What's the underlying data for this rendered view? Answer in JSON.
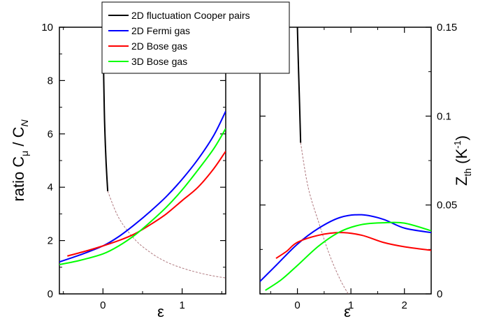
{
  "chart_data": [
    {
      "type": "line",
      "ylabel_left": "ratio  C",
      "ylabel_left_sub": "μ",
      "ylabel_left_mid": " / C",
      "ylabel_left_sub2": "N",
      "xlabel": "ε",
      "xlim": [
        -0.55,
        1.55
      ],
      "ylim": [
        0,
        10
      ],
      "x_ticks": [
        0,
        1
      ],
      "x_tick_labels": [
        "0",
        "1"
      ],
      "y_ticks": [
        0,
        2,
        4,
        6,
        8,
        10
      ],
      "y_tick_labels": [
        "0",
        "2",
        "4",
        "6",
        "8",
        "10"
      ],
      "grid": false,
      "legend": {
        "position": "top-center",
        "entries": [
          {
            "label": "2D fluctuation Cooper pairs",
            "color": "#000000"
          },
          {
            "label": "2D Fermi gas",
            "color": "#0000ff"
          },
          {
            "label": "2D Bose gas",
            "color": "#ff0000"
          },
          {
            "label": "3D Bose gas",
            "color": "#00ff00"
          }
        ]
      },
      "series": [
        {
          "name": "2D fluctuation Cooper pairs",
          "color": "#000000",
          "style": "solid",
          "x": [
            0.0,
            0.005,
            0.01,
            0.015,
            0.02,
            0.03,
            0.04,
            0.05,
            0.06
          ],
          "y": [
            10.0,
            9.0,
            8.0,
            7.2,
            6.5,
            5.6,
            4.9,
            4.35,
            3.85
          ]
        },
        {
          "name": "2D fluctuation Cooper pairs (extrapolation)",
          "color": "#b07a80",
          "style": "dashed",
          "x": [
            0.06,
            0.2,
            0.4,
            0.6,
            0.8,
            1.0,
            1.2,
            1.4,
            1.55
          ],
          "y": [
            3.85,
            2.85,
            2.05,
            1.55,
            1.2,
            0.97,
            0.8,
            0.67,
            0.6
          ]
        },
        {
          "name": "2D Fermi gas",
          "color": "#0000ff",
          "style": "solid",
          "x": [
            -0.55,
            -0.3,
            0.0,
            0.2,
            0.4,
            0.6,
            0.8,
            1.0,
            1.2,
            1.4,
            1.55
          ],
          "y": [
            1.2,
            1.45,
            1.8,
            2.15,
            2.6,
            3.1,
            3.65,
            4.3,
            5.05,
            5.95,
            6.85
          ]
        },
        {
          "name": "2D Bose gas",
          "color": "#ff0000",
          "style": "solid",
          "x": [
            -0.45,
            -0.2,
            0.0,
            0.2,
            0.4,
            0.6,
            0.8,
            1.0,
            1.2,
            1.4,
            1.55
          ],
          "y": [
            1.42,
            1.62,
            1.8,
            2.0,
            2.25,
            2.6,
            3.0,
            3.5,
            4.0,
            4.7,
            5.35
          ]
        },
        {
          "name": "3D Bose gas",
          "color": "#00ff00",
          "style": "solid",
          "x": [
            -0.55,
            -0.3,
            0.0,
            0.2,
            0.4,
            0.6,
            0.8,
            1.0,
            1.2,
            1.4,
            1.55
          ],
          "y": [
            1.1,
            1.25,
            1.5,
            1.8,
            2.2,
            2.7,
            3.25,
            3.9,
            4.65,
            5.45,
            6.2
          ]
        }
      ]
    },
    {
      "type": "line",
      "ylabel_right": "Z",
      "ylabel_right_sub": "th",
      "ylabel_right_unit": " (K",
      "ylabel_right_sup": "-1",
      "ylabel_right_end": ")",
      "xlabel": "ε",
      "xlim": [
        -0.7,
        2.5
      ],
      "ylim": [
        0,
        0.15
      ],
      "x_ticks": [
        0,
        1,
        2
      ],
      "x_tick_labels": [
        "0",
        "1",
        "2"
      ],
      "y_ticks": [
        0,
        0.05,
        0.1,
        0.15
      ],
      "y_tick_labels": [
        "0",
        "0.05",
        "0.1",
        "0.15"
      ],
      "grid": false,
      "series": [
        {
          "name": "2D fluctuation Cooper pairs",
          "color": "#000000",
          "style": "solid",
          "x": [
            0.0,
            0.01,
            0.02,
            0.03,
            0.04,
            0.05,
            0.06
          ],
          "y": [
            0.15,
            0.138,
            0.127,
            0.117,
            0.107,
            0.096,
            0.085
          ]
        },
        {
          "name": "2D fluctuation Cooper pairs (extrapolation)",
          "color": "#b07a80",
          "style": "dashed",
          "x": [
            0.06,
            0.2,
            0.4,
            0.6,
            0.8,
            0.95
          ],
          "y": [
            0.085,
            0.06,
            0.04,
            0.022,
            0.008,
            0.0
          ]
        },
        {
          "name": "2D Fermi gas",
          "color": "#0000ff",
          "style": "solid",
          "x": [
            -0.7,
            -0.4,
            0.0,
            0.4,
            0.8,
            1.2,
            1.6,
            2.0,
            2.5
          ],
          "y": [
            0.007,
            0.016,
            0.028,
            0.037,
            0.043,
            0.0445,
            0.042,
            0.037,
            0.0345
          ]
        },
        {
          "name": "2D Bose gas",
          "color": "#ff0000",
          "style": "solid",
          "x": [
            -0.4,
            -0.2,
            0.0,
            0.4,
            0.8,
            1.2,
            1.6,
            2.0,
            2.5
          ],
          "y": [
            0.02,
            0.024,
            0.029,
            0.033,
            0.0345,
            0.033,
            0.029,
            0.0265,
            0.0245
          ]
        },
        {
          "name": "3D Bose gas",
          "color": "#00ff00",
          "style": "solid",
          "x": [
            -0.6,
            -0.3,
            0.0,
            0.4,
            0.8,
            1.2,
            1.6,
            2.0,
            2.5
          ],
          "y": [
            0.002,
            0.008,
            0.016,
            0.027,
            0.035,
            0.039,
            0.04,
            0.0398,
            0.0355
          ]
        }
      ]
    }
  ]
}
